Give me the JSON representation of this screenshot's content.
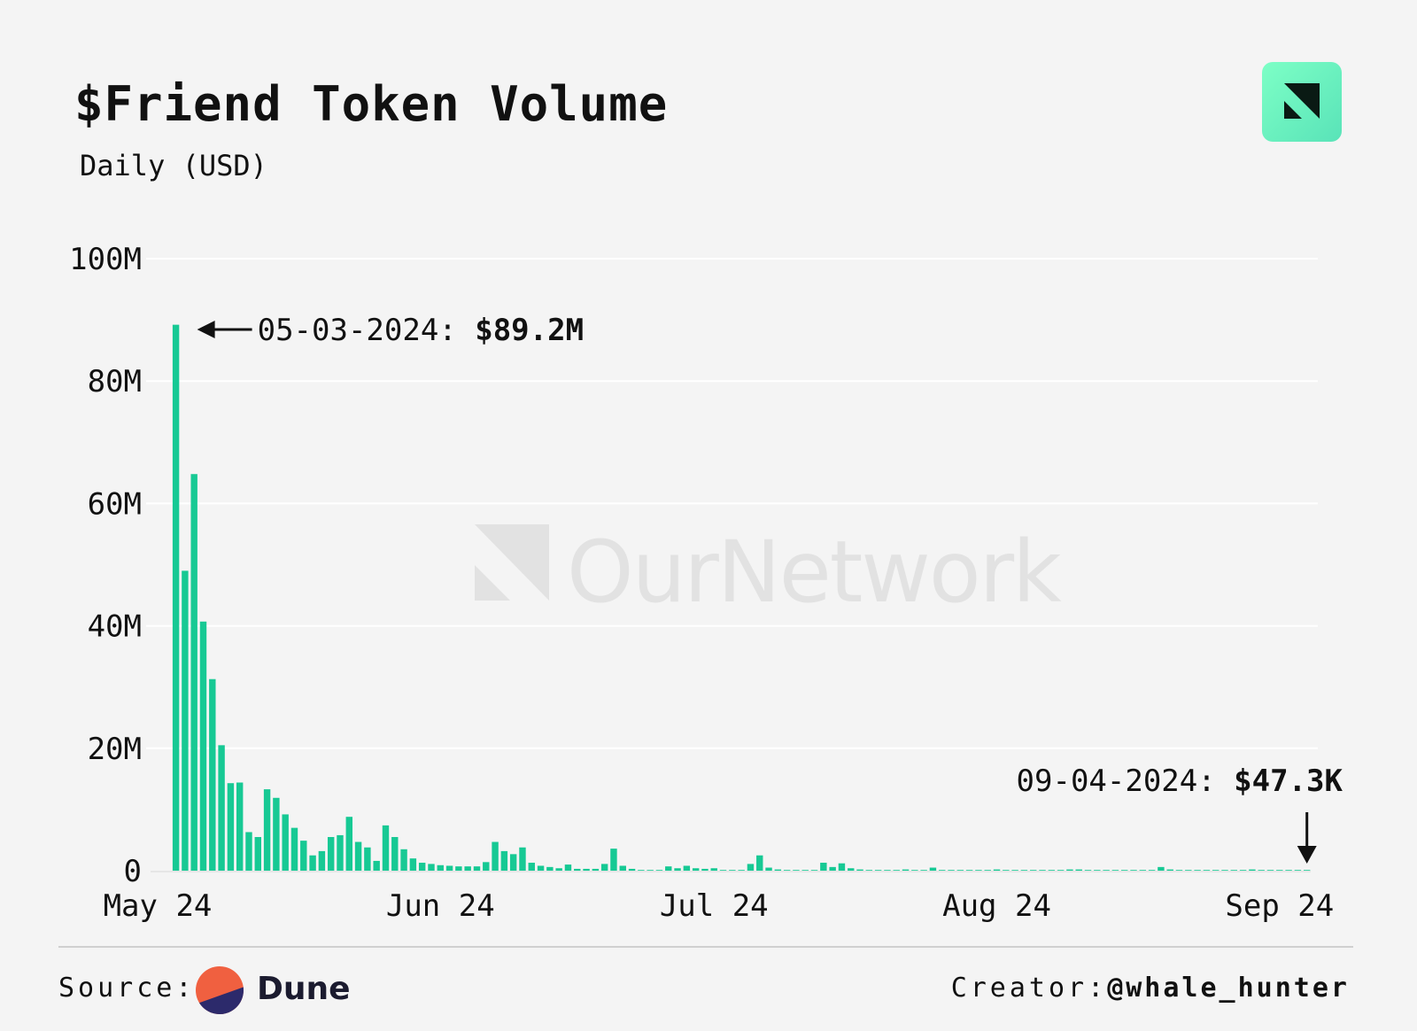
{
  "title": "$Friend Token Volume",
  "subtitle": "Daily (USD)",
  "footer": {
    "source_label": "Source:",
    "source_name": "Dune",
    "creator_label": "Creator:",
    "creator_handle": "@whale_hunter"
  },
  "watermark": "OurNetwork",
  "colors": {
    "bar": "#17c994",
    "background": "#f4f4f4",
    "accent_logo": "#6ff0c0"
  },
  "chart_data": {
    "type": "bar",
    "title": "$Friend Token Volume",
    "subtitle": "Daily (USD)",
    "xlabel": "",
    "ylabel": "",
    "ylim": [
      0,
      100000000
    ],
    "yticks": [
      0,
      20000000,
      40000000,
      60000000,
      80000000,
      100000000
    ],
    "ytick_labels": [
      "0",
      "20M",
      "40M",
      "60M",
      "80M",
      "100M"
    ],
    "xtick_labels": [
      "May 24",
      "Jun 24",
      "Jul 24",
      "Aug 24",
      "Sep 24"
    ],
    "xtick_dates": [
      "2024-05-01",
      "2024-06-01",
      "2024-07-01",
      "2024-08-01",
      "2024-09-01"
    ],
    "grid": true,
    "dates": [
      "2024-05-03",
      "2024-05-04",
      "2024-05-05",
      "2024-05-06",
      "2024-05-07",
      "2024-05-08",
      "2024-05-09",
      "2024-05-10",
      "2024-05-11",
      "2024-05-12",
      "2024-05-13",
      "2024-05-14",
      "2024-05-15",
      "2024-05-16",
      "2024-05-17",
      "2024-05-18",
      "2024-05-19",
      "2024-05-20",
      "2024-05-21",
      "2024-05-22",
      "2024-05-23",
      "2024-05-24",
      "2024-05-25",
      "2024-05-26",
      "2024-05-27",
      "2024-05-28",
      "2024-05-29",
      "2024-05-30",
      "2024-05-31",
      "2024-06-01",
      "2024-06-02",
      "2024-06-03",
      "2024-06-04",
      "2024-06-05",
      "2024-06-06",
      "2024-06-07",
      "2024-06-08",
      "2024-06-09",
      "2024-06-10",
      "2024-06-11",
      "2024-06-12",
      "2024-06-13",
      "2024-06-14",
      "2024-06-15",
      "2024-06-16",
      "2024-06-17",
      "2024-06-18",
      "2024-06-19",
      "2024-06-20",
      "2024-06-21",
      "2024-06-22",
      "2024-06-23",
      "2024-06-24",
      "2024-06-25",
      "2024-06-26",
      "2024-06-27",
      "2024-06-28",
      "2024-06-29",
      "2024-06-30",
      "2024-07-01",
      "2024-07-02",
      "2024-07-03",
      "2024-07-04",
      "2024-07-05",
      "2024-07-06",
      "2024-07-07",
      "2024-07-08",
      "2024-07-09",
      "2024-07-10",
      "2024-07-11",
      "2024-07-12",
      "2024-07-13",
      "2024-07-14",
      "2024-07-15",
      "2024-07-16",
      "2024-07-17",
      "2024-07-18",
      "2024-07-19",
      "2024-07-20",
      "2024-07-21",
      "2024-07-22",
      "2024-07-23",
      "2024-07-24",
      "2024-07-25",
      "2024-07-26",
      "2024-07-27",
      "2024-07-28",
      "2024-07-29",
      "2024-07-30",
      "2024-07-31",
      "2024-08-01",
      "2024-08-02",
      "2024-08-03",
      "2024-08-04",
      "2024-08-05",
      "2024-08-06",
      "2024-08-07",
      "2024-08-08",
      "2024-08-09",
      "2024-08-10",
      "2024-08-11",
      "2024-08-12",
      "2024-08-13",
      "2024-08-14",
      "2024-08-15",
      "2024-08-16",
      "2024-08-17",
      "2024-08-18",
      "2024-08-19",
      "2024-08-20",
      "2024-08-21",
      "2024-08-22",
      "2024-08-23",
      "2024-08-24",
      "2024-08-25",
      "2024-08-26",
      "2024-08-27",
      "2024-08-28",
      "2024-08-29",
      "2024-08-30",
      "2024-08-31",
      "2024-09-01",
      "2024-09-02",
      "2024-09-03",
      "2024-09-04"
    ],
    "values": [
      89200000,
      49000000,
      64800000,
      40700000,
      31300000,
      20500000,
      14300000,
      14400000,
      6300000,
      5500000,
      13300000,
      11900000,
      9200000,
      7000000,
      4900000,
      2500000,
      3200000,
      5500000,
      5800000,
      8800000,
      4700000,
      3800000,
      1600000,
      7400000,
      5500000,
      3500000,
      2000000,
      1300000,
      1100000,
      900000,
      800000,
      700000,
      700000,
      700000,
      1400000,
      4700000,
      3200000,
      2700000,
      3800000,
      1300000,
      800000,
      600000,
      400000,
      1000000,
      300000,
      300000,
      300000,
      1100000,
      3600000,
      800000,
      300000,
      100000,
      0,
      100000,
      700000,
      400000,
      800000,
      400000,
      300000,
      400000,
      100000,
      0,
      100000,
      1100000,
      2500000,
      500000,
      200000,
      100000,
      100000,
      100000,
      100000,
      1300000,
      600000,
      1200000,
      400000,
      200000,
      100000,
      0,
      100000,
      100000,
      200000,
      100000,
      0,
      500000,
      100000,
      100000,
      100000,
      100000,
      100000,
      100000,
      200000,
      100000,
      100000,
      100000,
      100000,
      100000,
      100000,
      100000,
      200000,
      200000,
      100000,
      100000,
      100000,
      100000,
      100000,
      100000,
      100000,
      100000,
      600000,
      200000,
      100000,
      100000,
      100000,
      100000,
      100000,
      100000,
      100000,
      100000,
      200000,
      100000,
      100000,
      100000,
      100000,
      100000,
      47300
    ],
    "annotations": [
      {
        "date": "2024-05-03",
        "text": "05-03-2024: ",
        "value_text": "$89.2M"
      },
      {
        "date": "2024-09-04",
        "text": "09-04-2024: ",
        "value_text": "$47.3K"
      }
    ]
  }
}
